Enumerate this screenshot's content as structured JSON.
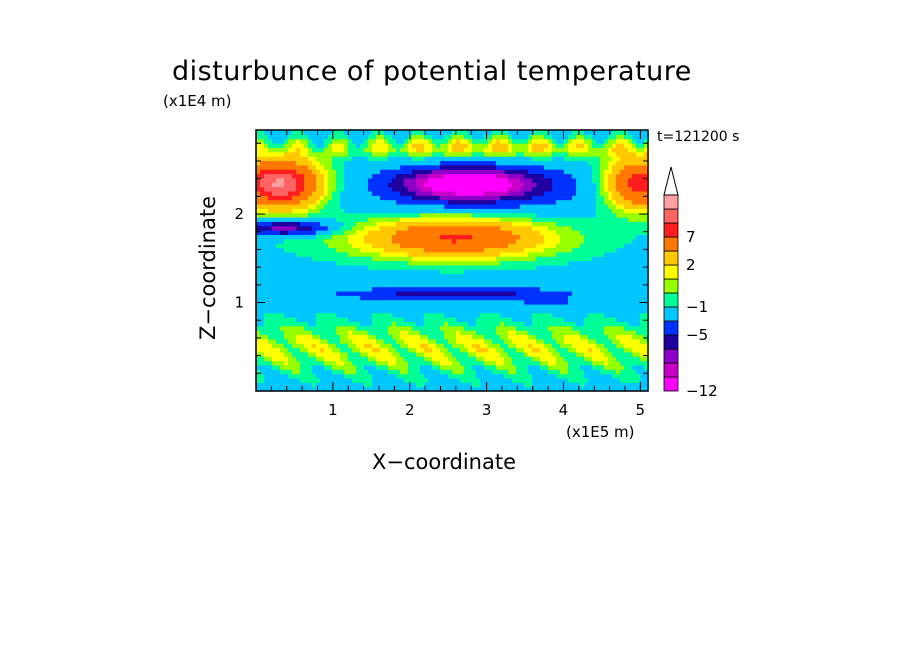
{
  "chart_data": {
    "type": "heatmap",
    "title": "disturbunce of potential temperature",
    "time_label": "t=121200 s",
    "xlabel": "X−coordinate",
    "ylabel": "Z−coordinate",
    "x_scale_label": "(x1E5 m)",
    "y_scale_label": "(x1E4 m)",
    "xlim": [
      0,
      5.1
    ],
    "ylim": [
      0,
      2.95
    ],
    "x_ticks": [
      {
        "value": 1,
        "label": "1"
      },
      {
        "value": 2,
        "label": "2"
      },
      {
        "value": 3,
        "label": "3"
      },
      {
        "value": 4,
        "label": "4"
      },
      {
        "value": 5,
        "label": "5"
      }
    ],
    "y_ticks": [
      {
        "value": 1,
        "label": "1"
      },
      {
        "value": 2,
        "label": "2"
      }
    ],
    "colorbar": {
      "extend": "max",
      "levels": [
        {
          "value": -12,
          "color": "#ff00ff"
        },
        {
          "value": -11,
          "color": "#c800c8"
        },
        {
          "value": -9,
          "color": "#8c00c8"
        },
        {
          "value": -7,
          "color": "#1e00a0"
        },
        {
          "value": -5,
          "color": "#0032ff"
        },
        {
          "value": -3,
          "color": "#00c8ff"
        },
        {
          "value": -1,
          "color": "#00ff96"
        },
        {
          "value": 0,
          "color": "#96ff00"
        },
        {
          "value": 1,
          "color": "#ffff00"
        },
        {
          "value": 2,
          "color": "#ffc800"
        },
        {
          "value": 4,
          "color": "#ff7800"
        },
        {
          "value": 7,
          "color": "#ff1e1e"
        },
        {
          "value": 9,
          "color": "#ff6464"
        },
        {
          "value": 11,
          "color": "#ffa0a0"
        }
      ],
      "labels": [
        {
          "value": 7,
          "label": "7"
        },
        {
          "value": 2,
          "label": "2"
        },
        {
          "value": -1,
          "label": "−1"
        },
        {
          "value": -5,
          "label": "−5"
        },
        {
          "value": -12,
          "label": "−12"
        }
      ]
    },
    "grid": false,
    "legend": "right"
  }
}
